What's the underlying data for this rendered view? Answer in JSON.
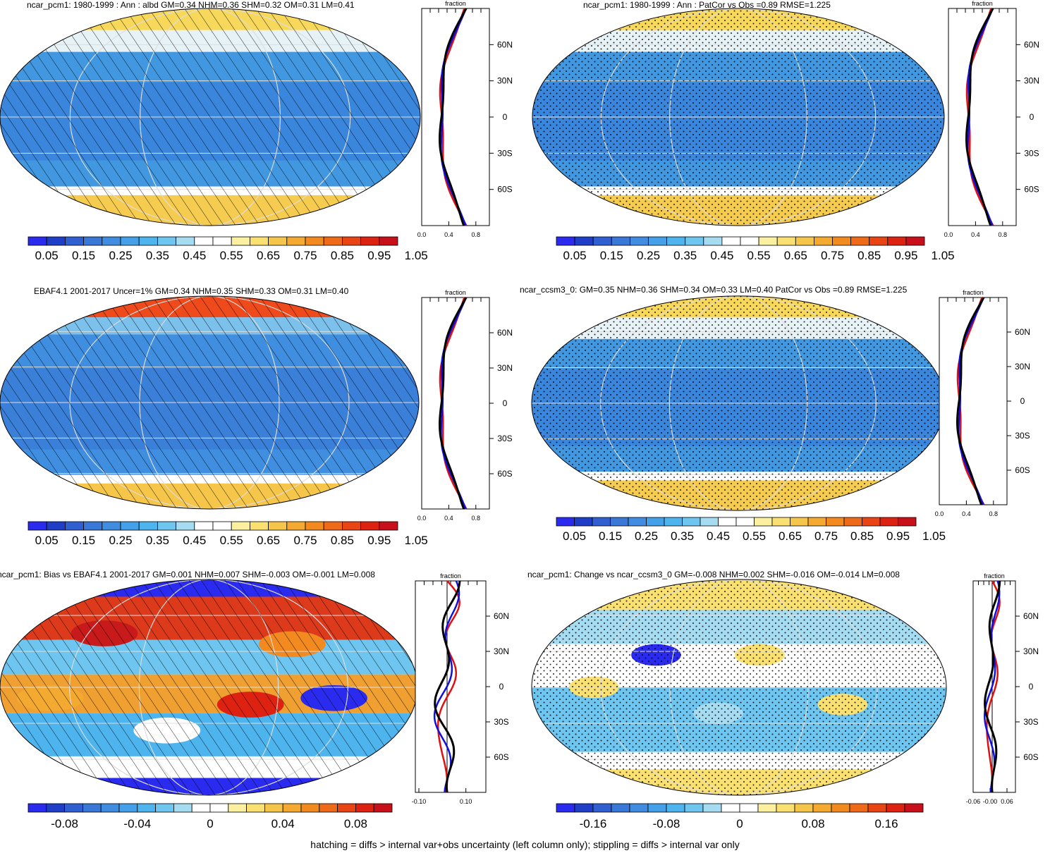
{
  "footer": "hatching = diffs > internal var+obs uncertainty (left column only); stippling = diffs > internal var only",
  "colorbars": {
    "abs": [
      "0.05",
      "0.15",
      "0.25",
      "0.35",
      "0.45",
      "0.55",
      "0.65",
      "0.75",
      "0.85",
      "0.95",
      "1.05"
    ],
    "bias": [
      "-0.08",
      "-0.04",
      "0",
      "0.04",
      "0.08"
    ],
    "change": [
      "-0.16",
      "-0.08",
      "0",
      "0.08",
      "0.16"
    ]
  },
  "colors": {
    "scale": [
      "#2b2bf0",
      "#1e3ec8",
      "#2f5fd0",
      "#3a78d8",
      "#3f8ce0",
      "#44a0e8",
      "#4db4ee",
      "#6ec6f0",
      "#a6dcf2",
      "#ffffff",
      "#ffffff",
      "#fbf0a0",
      "#f9e070",
      "#f6c64a",
      "#f4aa30",
      "#f28a20",
      "#ee6a18",
      "#e84414",
      "#dd2212",
      "#c8101a"
    ]
  },
  "panels": [
    {
      "id": "p1",
      "title": "ncar_pcm1: 1980-1999 : Ann : albd GM=0.34 NHM=0.36 SHM=0.32 OM=0.31 LM=0.41",
      "side_label": "fraction",
      "lat_ticks": [
        "60N",
        "30N",
        "0",
        "30S",
        "60S"
      ],
      "x_ticks": [
        "0.0",
        "0.4",
        "0.8"
      ],
      "colorbar": "abs",
      "pattern": "hatch",
      "style": "abs"
    },
    {
      "id": "p2",
      "title": "ncar_pcm1: 1980-1999 : Ann : PatCor vs Obs =0.89 RMSE=1.225",
      "side_label": "fraction",
      "lat_ticks": [
        "60N",
        "30N",
        "0",
        "30S",
        "60S"
      ],
      "x_ticks": [
        "0.0",
        "0.4",
        "0.8"
      ],
      "colorbar": "abs",
      "pattern": "stipple",
      "style": "abs"
    },
    {
      "id": "p3",
      "title": "EBAF4.1 2001-2017 Uncer=1% GM=0.34 NHM=0.35 SHM=0.33 OM=0.31 LM=0.40",
      "side_label": "fraction",
      "lat_ticks": [
        "60N",
        "30N",
        "0",
        "30S",
        "60S"
      ],
      "x_ticks": [
        "0.0",
        "0.4",
        "0.8"
      ],
      "colorbar": "abs",
      "pattern": "hatch",
      "style": "obs"
    },
    {
      "id": "p4",
      "title": "ncar_ccsm3_0: GM=0.35 NHM=0.36 SHM=0.34 OM=0.33 LM=0.40 PatCor vs Obs =0.89 RMSE=1.225",
      "side_label": "fraction",
      "lat_ticks": [
        "60N",
        "30N",
        "0",
        "30S",
        "60S"
      ],
      "x_ticks": [
        "0.0",
        "0.4",
        "0.8"
      ],
      "colorbar": "abs",
      "pattern": "stipple",
      "style": "abs"
    },
    {
      "id": "p5",
      "title": "ncar_pcm1: Bias vs EBAF4.1 2001-2017 GM=0.001 NHM=0.007 SHM=-0.003 OM=-0.001 LM=0.008",
      "side_label": "fraction",
      "lat_ticks": [
        "60N",
        "30N",
        "0",
        "30S",
        "60S"
      ],
      "x_ticks": [
        "-0.10",
        "0.10"
      ],
      "colorbar": "bias",
      "pattern": "hatch",
      "style": "bias"
    },
    {
      "id": "p6",
      "title": "ncar_pcm1: Change vs ncar_ccsm3_0 GM=-0.008 NHM=0.002 SHM=-0.016 OM=-0.014 LM=0.008",
      "side_label": "fraction",
      "lat_ticks": [
        "60N",
        "30N",
        "0",
        "30S",
        "60S"
      ],
      "x_ticks": [
        "-0.06",
        "-0.00",
        "0.06"
      ],
      "colorbar": "change",
      "pattern": "stipple",
      "style": "change"
    }
  ]
}
